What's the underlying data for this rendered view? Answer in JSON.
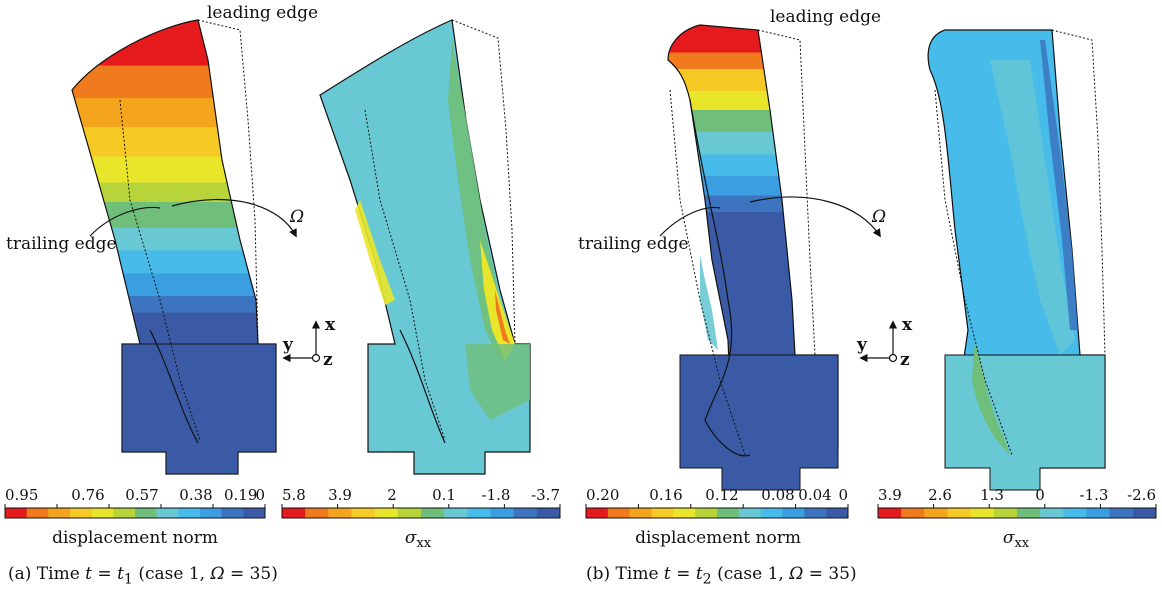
{
  "panels": [
    {
      "id": "a",
      "annot_leading": "leading edge",
      "annot_trailing": "trailing edge",
      "omega_label": "Ω",
      "axes": {
        "x": "x",
        "y": "y",
        "z": "z"
      },
      "cbar_left": {
        "ticks": [
          "0.95",
          "0.76",
          "0.57",
          "0.38",
          "0.19",
          "0"
        ],
        "title": "displacement norm"
      },
      "cbar_right": {
        "ticks": [
          "5.8",
          "3.9",
          "2",
          "0.1",
          "-1.8",
          "-3.7"
        ],
        "title_base": "σ",
        "title_sub": "xx"
      },
      "caption": {
        "prefix": "(a)  Time ",
        "var": "t",
        "eq": " = ",
        "sym": "t",
        "sub": "1",
        "post": " (case 1, ",
        "omega": "Ω",
        "end": " = 35)"
      }
    },
    {
      "id": "b",
      "annot_leading": "leading edge",
      "annot_trailing": "trailing edge",
      "omega_label": "Ω",
      "axes": {
        "x": "x",
        "y": "y",
        "z": "z"
      },
      "cbar_left": {
        "ticks": [
          "0.20",
          "0.16",
          "0.12",
          "0.08",
          "0.04",
          "0"
        ],
        "title": "displacement norm"
      },
      "cbar_right": {
        "ticks": [
          "3.9",
          "2.6",
          "1.3",
          "0",
          "-1.3",
          "-2.6"
        ],
        "title_base": "σ",
        "title_sub": "xx"
      },
      "caption": {
        "prefix": "(b)  Time ",
        "var": "t",
        "eq": " = ",
        "sym": "t",
        "sub": "2",
        "post": " (case 1, ",
        "omega": "Ω",
        "end": " = 35)"
      }
    }
  ],
  "colormap": [
    "#e41a1c",
    "#f07b1e",
    "#f4a41d",
    "#f6c925",
    "#e9e52a",
    "#b8d43b",
    "#6fbf7a",
    "#68c8d4",
    "#47bbe9",
    "#3a9ee0",
    "#3c74c0",
    "#3a5aa6"
  ]
}
